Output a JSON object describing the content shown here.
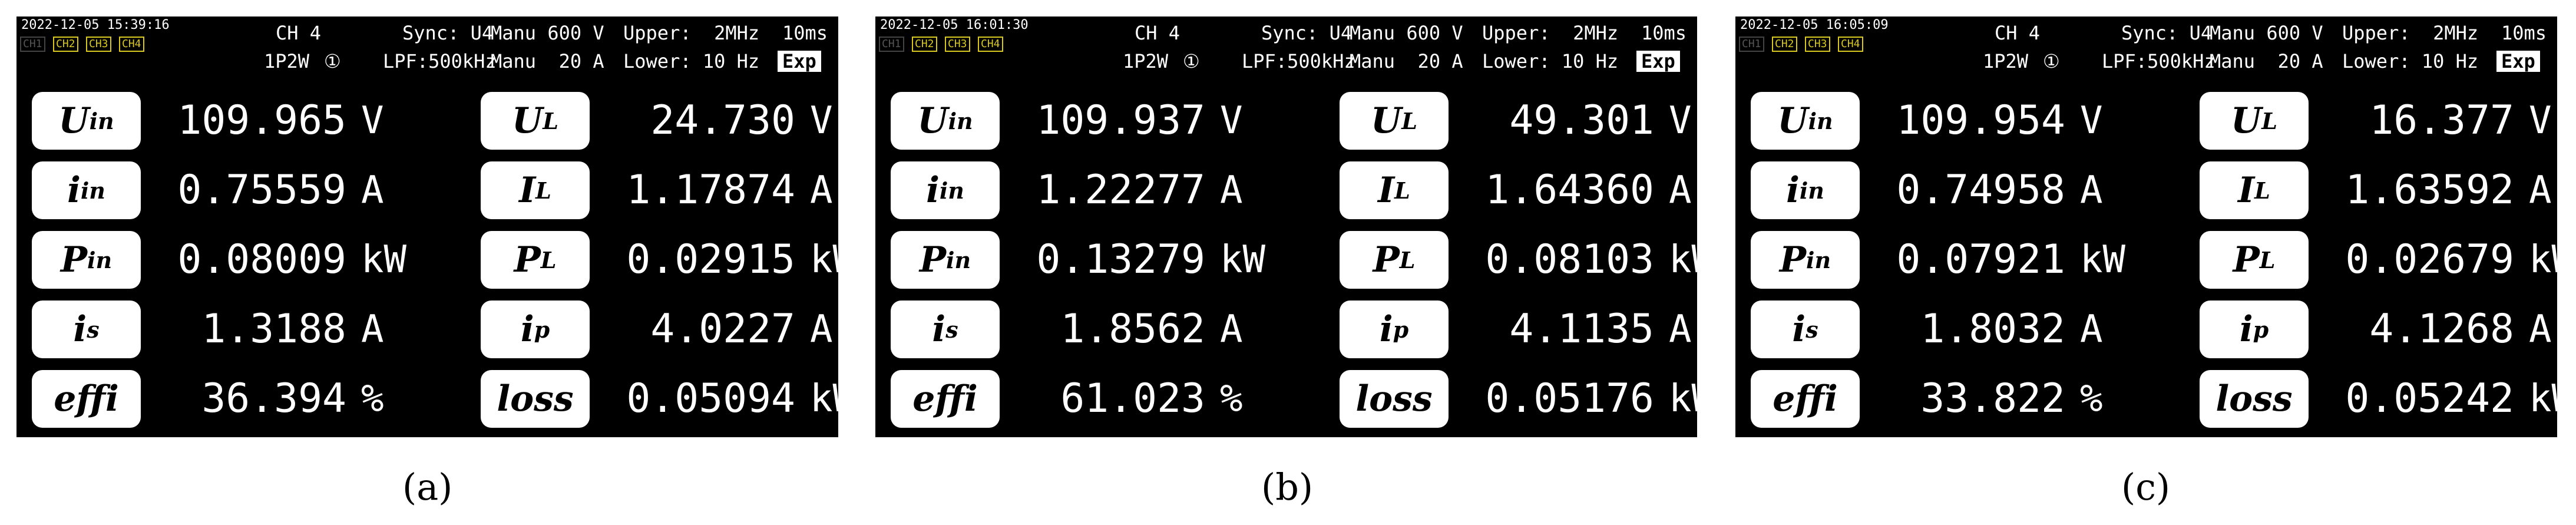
{
  "panels": [
    {
      "caption": "(a)",
      "header": {
        "timestamp": "2022-12-05 15:39:16",
        "channels": [
          "CH1",
          "CH2",
          "CH3",
          "CH4"
        ],
        "channel": "CH 4",
        "wiring": "1P2W",
        "marker": "①",
        "sync": "Sync: U4",
        "lpf": "LPF:500kHz",
        "vrange": "Manu 600 V",
        "arange": "Manu  20 A",
        "upper": "Upper:  2MHz",
        "lower": "Lower: 10 Hz",
        "rate": "10ms",
        "mode": "Exp"
      },
      "rows": [
        [
          {
            "name": "U",
            "sub": "in",
            "value": "109.965",
            "unit": "V"
          },
          {
            "name": "U",
            "sub": "L",
            "value": "24.730",
            "unit": "V"
          }
        ],
        [
          {
            "name": "i",
            "sub": "in",
            "value": "0.75559",
            "unit": "A"
          },
          {
            "name": "I",
            "sub": "L",
            "value": "1.17874",
            "unit": "A"
          }
        ],
        [
          {
            "name": "P",
            "sub": "in",
            "value": "0.08009",
            "unit": "kW"
          },
          {
            "name": "P",
            "sub": "L",
            "value": "0.02915",
            "unit": "kW"
          }
        ],
        [
          {
            "name": "i",
            "sub": "s",
            "value": "1.3188",
            "unit": "A"
          },
          {
            "name": "i",
            "sub": "p",
            "value": "4.0227",
            "unit": "A"
          }
        ],
        [
          {
            "name": "effi",
            "value": "36.394",
            "unit": "%"
          },
          {
            "name": "loss",
            "value": "0.05094",
            "unit": "kW"
          }
        ]
      ]
    },
    {
      "caption": "(b)",
      "header": {
        "timestamp": "2022-12-05 16:01:30",
        "channels": [
          "CH1",
          "CH2",
          "CH3",
          "CH4"
        ],
        "channel": "CH 4",
        "wiring": "1P2W",
        "marker": "①",
        "sync": "Sync: U4",
        "lpf": "LPF:500kHz",
        "vrange": "Manu 600 V",
        "arange": "Manu  20 A",
        "upper": "Upper:  2MHz",
        "lower": "Lower: 10 Hz",
        "rate": "10ms",
        "mode": "Exp"
      },
      "rows": [
        [
          {
            "name": "U",
            "sub": "in",
            "value": "109.937",
            "unit": "V"
          },
          {
            "name": "U",
            "sub": "L",
            "value": "49.301",
            "unit": "V"
          }
        ],
        [
          {
            "name": "i",
            "sub": "in",
            "value": "1.22277",
            "unit": "A"
          },
          {
            "name": "I",
            "sub": "L",
            "value": "1.64360",
            "unit": "A"
          }
        ],
        [
          {
            "name": "P",
            "sub": "in",
            "value": "0.13279",
            "unit": "kW"
          },
          {
            "name": "P",
            "sub": "L",
            "value": "0.08103",
            "unit": "kW"
          }
        ],
        [
          {
            "name": "i",
            "sub": "s",
            "value": "1.8562",
            "unit": "A"
          },
          {
            "name": "i",
            "sub": "p",
            "value": "4.1135",
            "unit": "A"
          }
        ],
        [
          {
            "name": "effi",
            "value": "61.023",
            "unit": "%"
          },
          {
            "name": "loss",
            "value": "0.05176",
            "unit": "kW"
          }
        ]
      ]
    },
    {
      "caption": "(c)",
      "header": {
        "timestamp": "2022-12-05 16:05:09",
        "channels": [
          "CH1",
          "CH2",
          "CH3",
          "CH4"
        ],
        "channel": "CH 4",
        "wiring": "1P2W",
        "marker": "①",
        "sync": "Sync: U4",
        "lpf": "LPF:500kHz",
        "vrange": "Manu 600 V",
        "arange": "Manu  20 A",
        "upper": "Upper:  2MHz",
        "lower": "Lower: 10 Hz",
        "rate": "10ms",
        "mode": "Exp"
      },
      "rows": [
        [
          {
            "name": "U",
            "sub": "in",
            "value": "109.954",
            "unit": "V"
          },
          {
            "name": "U",
            "sub": "L",
            "value": "16.377",
            "unit": "V"
          }
        ],
        [
          {
            "name": "i",
            "sub": "in",
            "value": "0.74958",
            "unit": "A"
          },
          {
            "name": "I",
            "sub": "L",
            "value": "1.63592",
            "unit": "A"
          }
        ],
        [
          {
            "name": "P",
            "sub": "in",
            "value": "0.07921",
            "unit": "kW"
          },
          {
            "name": "P",
            "sub": "L",
            "value": "0.02679",
            "unit": "kW"
          }
        ],
        [
          {
            "name": "i",
            "sub": "s",
            "value": "1.8032",
            "unit": "A"
          },
          {
            "name": "i",
            "sub": "p",
            "value": "4.1268",
            "unit": "A"
          }
        ],
        [
          {
            "name": "effi",
            "value": "33.822",
            "unit": "%"
          },
          {
            "name": "loss",
            "value": "0.05242",
            "unit": "kW"
          }
        ]
      ]
    }
  ]
}
